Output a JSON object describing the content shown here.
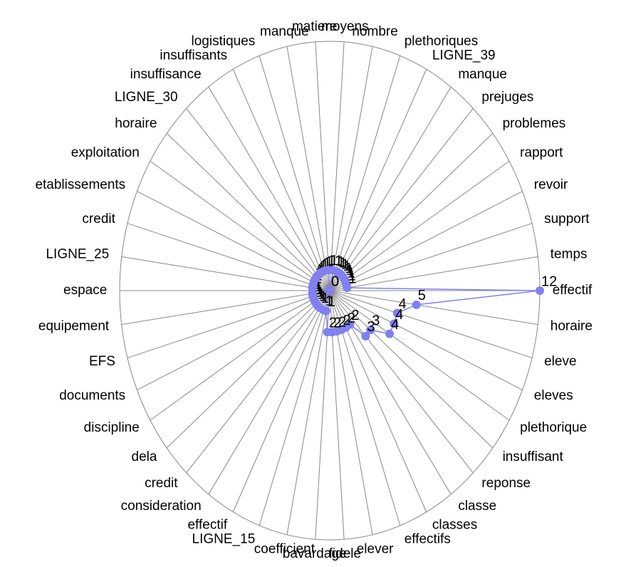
{
  "chart_data": {
    "type": "radar",
    "categories": [
      "effectif",
      "horaire",
      "eleve",
      "eleves",
      "plethorique",
      "insuffisant",
      "reponse",
      "classe",
      "classes",
      "effectifs",
      "elever",
      "fidele",
      "bavardage",
      "coefficient",
      "LIGNE_15",
      "effectif",
      "consideration",
      "credit",
      "dela",
      "discipline",
      "documents",
      "EFS",
      "equipement",
      "espace",
      "LIGNE_25",
      "credit",
      "etablissements",
      "exploitation",
      "horaire",
      "LIGNE_30",
      "insuffisance",
      "insuffisants",
      "logistiques",
      "manque",
      "matiere",
      "moyens",
      "nombre",
      "plethoriques",
      "LIGNE_39",
      "manque",
      "prejuges",
      "problemes",
      "rapport",
      "revoir",
      "support",
      "temps"
    ],
    "values": [
      12,
      5,
      4,
      4,
      4,
      3,
      3,
      2,
      2,
      2,
      2,
      2,
      2,
      1,
      1,
      0,
      1,
      1,
      1,
      1,
      1,
      1,
      1,
      0,
      1,
      1,
      1,
      1,
      1,
      1,
      1,
      1,
      1,
      1,
      1,
      0,
      1,
      1,
      1,
      1,
      1,
      1,
      1,
      1,
      1,
      1
    ],
    "color": "#8080f0",
    "rlim": [
      0,
      12
    ]
  }
}
